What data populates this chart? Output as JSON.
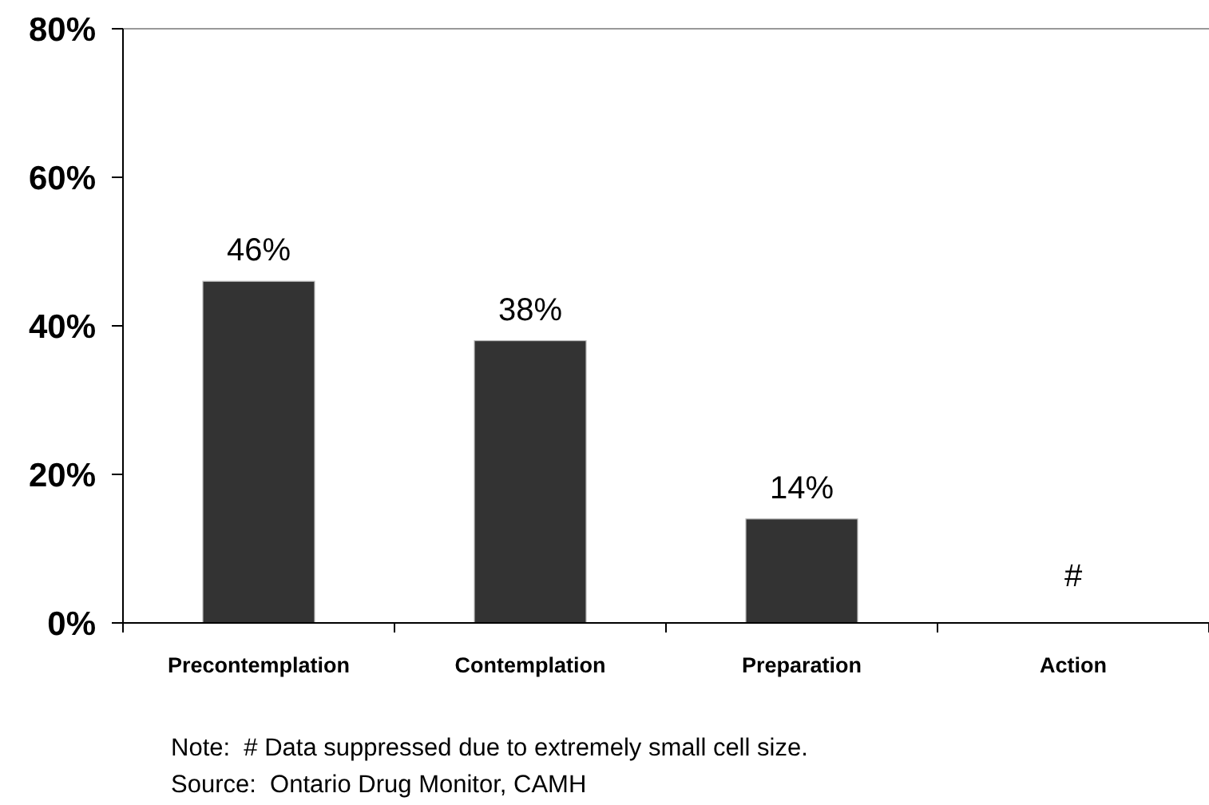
{
  "chart_data": {
    "type": "bar",
    "categories": [
      "Precontemplation",
      "Contemplation",
      "Preparation",
      "Action"
    ],
    "values": [
      46,
      38,
      14,
      null
    ],
    "value_labels": [
      "46%",
      "38%",
      "14%",
      "#"
    ],
    "color": "#333333",
    "ylim": [
      0,
      80
    ],
    "yticks": [
      {
        "value": 0,
        "label": "0%"
      },
      {
        "value": 20,
        "label": "20%"
      },
      {
        "value": 40,
        "label": "40%"
      },
      {
        "value": 60,
        "label": "60%"
      },
      {
        "value": 80,
        "label": "80%"
      }
    ],
    "grid": false,
    "annotations": [
      "Note:  # Data suppressed due to extremely small cell size.",
      "Source:  Ontario Drug Monitor, CAMH"
    ]
  }
}
